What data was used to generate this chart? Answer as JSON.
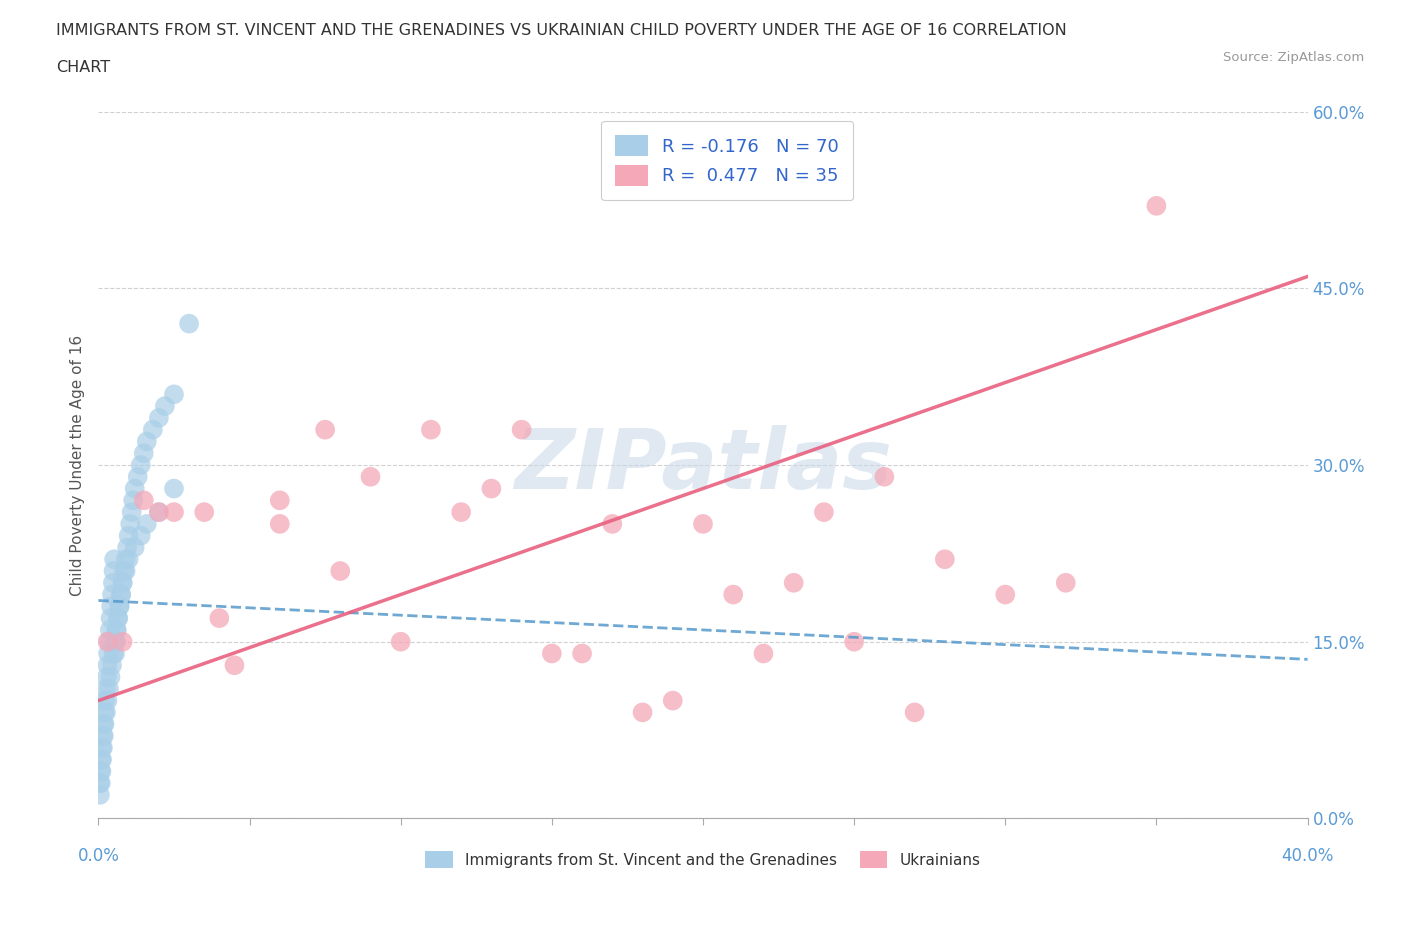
{
  "title_line1": "IMMIGRANTS FROM ST. VINCENT AND THE GRENADINES VS UKRAINIAN CHILD POVERTY UNDER THE AGE OF 16 CORRELATION",
  "title_line2": "CHART",
  "source": "Source: ZipAtlas.com",
  "ytick_values": [
    0,
    15,
    30,
    45,
    60
  ],
  "xtick_values": [
    0,
    5,
    10,
    15,
    20,
    25,
    30,
    35,
    40
  ],
  "color_blue": "#A8CEE8",
  "color_pink": "#F4A8B8",
  "color_line_blue": "#5599CC",
  "color_line_pink": "#E86080",
  "watermark": "ZIPatlas",
  "watermark_color": "#C8D8E8",
  "blue_scatter_x": [
    0.05,
    0.08,
    0.1,
    0.12,
    0.15,
    0.18,
    0.2,
    0.22,
    0.25,
    0.28,
    0.3,
    0.32,
    0.35,
    0.38,
    0.4,
    0.42,
    0.45,
    0.48,
    0.5,
    0.52,
    0.55,
    0.58,
    0.6,
    0.65,
    0.7,
    0.75,
    0.8,
    0.85,
    0.9,
    0.95,
    1.0,
    1.05,
    1.1,
    1.15,
    1.2,
    1.3,
    1.4,
    1.5,
    1.6,
    1.8,
    2.0,
    2.2,
    2.5,
    3.0,
    0.05,
    0.08,
    0.1,
    0.12,
    0.15,
    0.18,
    0.2,
    0.25,
    0.3,
    0.35,
    0.4,
    0.45,
    0.5,
    0.55,
    0.6,
    0.65,
    0.7,
    0.75,
    0.8,
    0.9,
    1.0,
    1.2,
    1.4,
    1.6,
    2.0,
    2.5
  ],
  "blue_scatter_y": [
    3,
    4,
    5,
    6,
    7,
    8,
    9,
    10,
    11,
    12,
    13,
    14,
    15,
    16,
    17,
    18,
    19,
    20,
    21,
    22,
    14,
    15,
    16,
    17,
    18,
    19,
    20,
    21,
    22,
    23,
    24,
    25,
    26,
    27,
    28,
    29,
    30,
    31,
    32,
    33,
    34,
    35,
    36,
    42,
    2,
    3,
    4,
    5,
    6,
    7,
    8,
    9,
    10,
    11,
    12,
    13,
    14,
    15,
    16,
    17,
    18,
    19,
    20,
    21,
    22,
    23,
    24,
    25,
    26,
    28
  ],
  "pink_scatter_x": [
    0.3,
    0.8,
    1.5,
    2.5,
    3.5,
    4.5,
    6.0,
    7.5,
    9.0,
    11.0,
    13.0,
    15.0,
    17.0,
    19.0,
    21.0,
    23.0,
    25.0,
    27.0,
    30.0,
    35.0,
    2.0,
    4.0,
    6.0,
    8.0,
    10.0,
    12.0,
    14.0,
    16.0,
    18.0,
    20.0,
    22.0,
    24.0,
    26.0,
    28.0,
    32.0
  ],
  "pink_scatter_y": [
    15,
    15,
    27,
    26,
    26,
    13,
    25,
    33,
    29,
    33,
    28,
    14,
    25,
    10,
    19,
    20,
    15,
    9,
    19,
    52,
    26,
    17,
    27,
    21,
    15,
    26,
    33,
    14,
    9,
    25,
    14,
    26,
    29,
    22,
    20
  ],
  "blue_line_x": [
    0,
    40
  ],
  "blue_line_y": [
    18.5,
    13.5
  ],
  "pink_line_x": [
    0,
    40
  ],
  "pink_line_y": [
    10,
    46
  ],
  "xlim": [
    0,
    40
  ],
  "ylim": [
    0,
    60
  ],
  "ylabel": "Child Poverty Under the Age of 16",
  "legend_label1": "Immigrants from St. Vincent and the Grenadines",
  "legend_label2": "Ukrainians",
  "legend_r1": "R = -0.176   N = 70",
  "legend_r2": "R =  0.477   N = 35"
}
